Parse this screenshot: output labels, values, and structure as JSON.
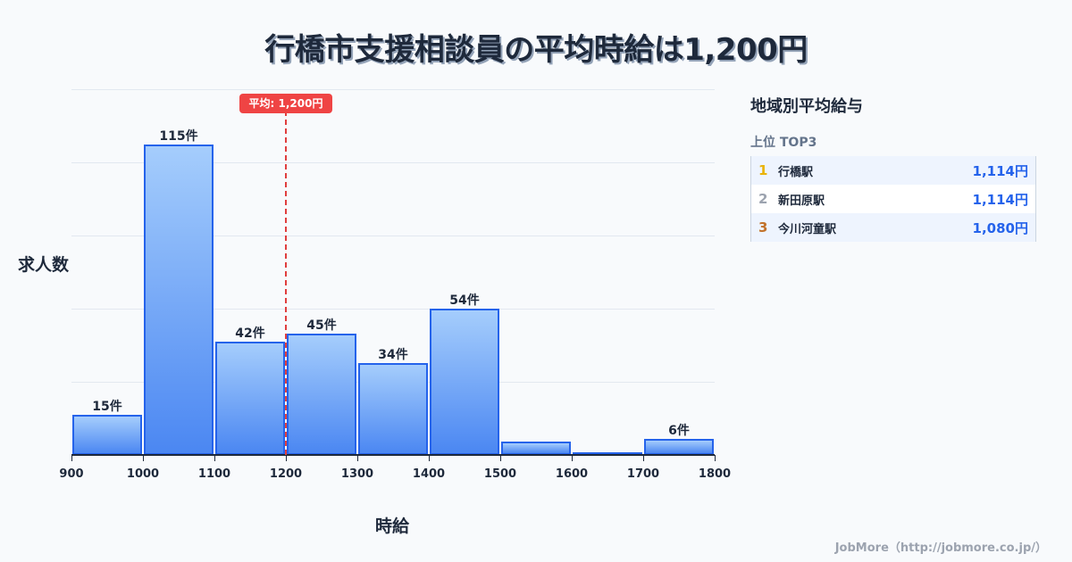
{
  "title": "行橋市支援相談員の平均時給は1,200円",
  "chart_data": {
    "type": "bar",
    "title": "行橋市支援相談員の平均時給は1,200円",
    "xlabel": "時給",
    "ylabel": "求人数",
    "bin_edges": [
      900,
      1000,
      1100,
      1200,
      1300,
      1400,
      1500,
      1600,
      1700,
      1800
    ],
    "categories": [
      "900-1000",
      "1000-1100",
      "1100-1200",
      "1200-1300",
      "1300-1400",
      "1400-1500",
      "1500-1600",
      "1600-1700",
      "1700-1800"
    ],
    "values": [
      15,
      115,
      42,
      45,
      34,
      54,
      5,
      1,
      6
    ],
    "data_labels": [
      "15件",
      "115件",
      "42件",
      "45件",
      "34件",
      "54件",
      "",
      "",
      "6件"
    ],
    "x_ticks": [
      "900",
      "1000",
      "1100",
      "1200",
      "1300",
      "1400",
      "1500",
      "1600",
      "1700",
      "1800"
    ],
    "xlim": [
      900,
      1800
    ],
    "ylim": [
      0,
      135
    ],
    "grid": true,
    "annotation": {
      "type": "vline",
      "x": 1200,
      "label": "平均: 1,200円",
      "color": "#ef4444"
    },
    "bar_color": "#2563eb"
  },
  "sidebar": {
    "title": "地域別平均給与",
    "subtitle": "上位 TOP3",
    "rows": [
      {
        "rank": "1",
        "name": "行橋駅",
        "value": "1,114円",
        "rank_color": "#eab308"
      },
      {
        "rank": "2",
        "name": "新田原駅",
        "value": "1,114円",
        "rank_color": "#9ca3af"
      },
      {
        "rank": "3",
        "name": "今川河童駅",
        "value": "1,080円",
        "rank_color": "#c2722a"
      }
    ]
  },
  "footer": "JobMore（http://jobmore.co.jp/）"
}
